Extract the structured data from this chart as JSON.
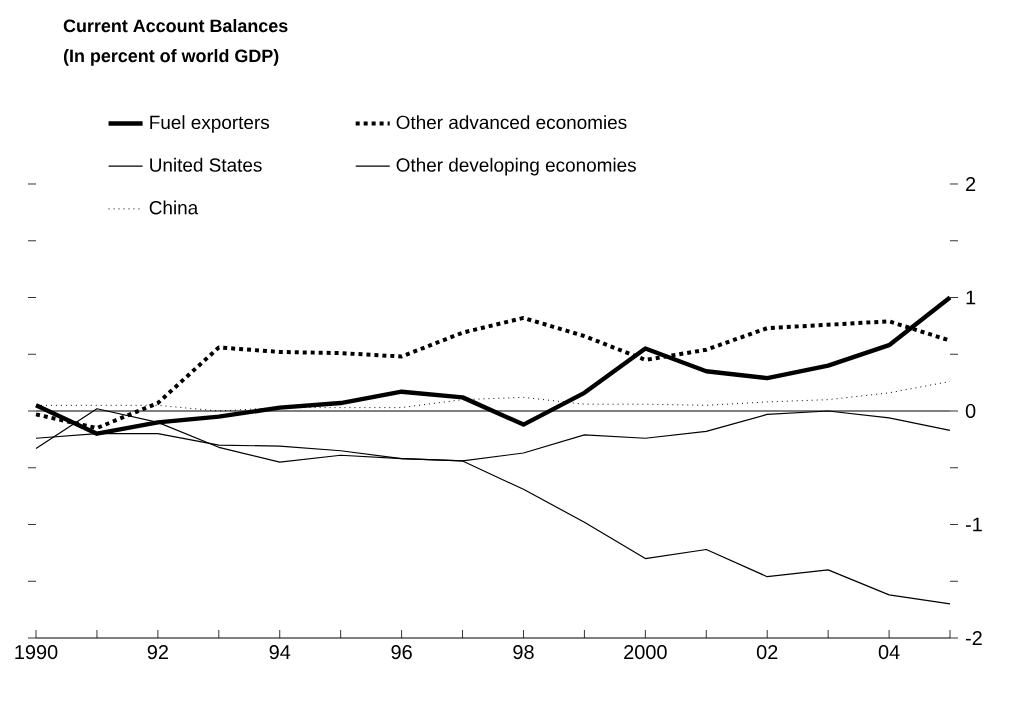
{
  "chart_data": {
    "type": "line",
    "title": "Current Account Balances",
    "subtitle": "(In percent of world GDP)",
    "x": [
      1990,
      1991,
      1992,
      1993,
      1994,
      1995,
      1996,
      1997,
      1998,
      1999,
      2000,
      2001,
      2002,
      2003,
      2004,
      2005
    ],
    "series": [
      {
        "name": "Fuel exporters",
        "color": "#000000",
        "line_style": "solid",
        "values": [
          0.05,
          -0.2,
          -0.1,
          -0.05,
          0.03,
          0.07,
          0.17,
          0.12,
          -0.12,
          0.16,
          0.55,
          0.35,
          0.29,
          0.4,
          0.58,
          1.0
        ]
      },
      {
        "name": "Other advanced economies",
        "color": "#000000",
        "line_style": "dotted",
        "values": [
          -0.03,
          -0.15,
          0.07,
          0.56,
          0.52,
          0.51,
          0.48,
          0.69,
          0.82,
          0.66,
          0.45,
          0.54,
          0.73,
          0.76,
          0.79,
          0.62
        ]
      },
      {
        "name": "United States",
        "color": "#000000",
        "line_style": "solid",
        "values": [
          -0.33,
          0.02,
          -0.1,
          -0.32,
          -0.45,
          -0.39,
          -0.42,
          -0.44,
          -0.69,
          -0.98,
          -1.3,
          -1.22,
          -1.46,
          -1.4,
          -1.62,
          -1.7
        ]
      },
      {
        "name": "Other developing economies",
        "color": "#000000",
        "line_style": "solid",
        "values": [
          -0.24,
          -0.2,
          -0.2,
          -0.3,
          -0.31,
          -0.35,
          -0.42,
          -0.44,
          -0.37,
          -0.21,
          -0.24,
          -0.18,
          -0.03,
          0.0,
          -0.06,
          -0.17
        ]
      },
      {
        "name": "China",
        "color": "#000000",
        "line_style": "dotted",
        "values": [
          0.05,
          0.05,
          0.05,
          0.0,
          0.03,
          0.03,
          0.03,
          0.1,
          0.12,
          0.06,
          0.06,
          0.05,
          0.08,
          0.1,
          0.16,
          0.26
        ]
      }
    ],
    "xlim": [
      1990,
      2005
    ],
    "xticks": [
      1990,
      {
        "value": 1991,
        "label": null
      },
      {
        "value": 1992,
        "label": "92"
      },
      {
        "value": 1993,
        "label": null
      },
      {
        "value": 1994,
        "label": "94"
      },
      {
        "value": 1995,
        "label": null
      },
      {
        "value": 1996,
        "label": "96"
      },
      {
        "value": 1997,
        "label": null
      },
      {
        "value": 1998,
        "label": "98"
      },
      {
        "value": 1999,
        "label": null
      },
      2000,
      {
        "value": 2001,
        "label": null
      },
      {
        "value": 2002,
        "label": "02"
      },
      {
        "value": 2003,
        "label": null
      },
      {
        "value": 2004,
        "label": "04"
      },
      {
        "value": 2005,
        "label": null
      }
    ],
    "ylim": [
      -2,
      2
    ],
    "yticks": [
      -2,
      {
        "value": -1.5,
        "label": null
      },
      -1,
      {
        "value": -0.5,
        "label": null
      },
      0,
      {
        "value": 0.5,
        "label": null
      },
      1,
      {
        "value": 1.5,
        "label": null
      },
      2
    ],
    "ref_lines": [
      {
        "axis": "y",
        "value": 0
      }
    ],
    "grid": false,
    "legend": "top",
    "marker": "none"
  }
}
